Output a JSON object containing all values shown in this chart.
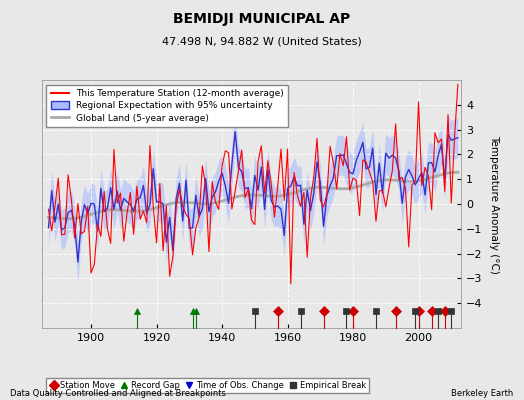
{
  "title": "BEMIDJI MUNICIPAL AP",
  "subtitle": "47.498 N, 94.882 W (United States)",
  "xlabel_note": "Data Quality Controlled and Aligned at Breakpoints",
  "right_note": "Berkeley Earth",
  "ylabel": "Temperature Anomaly (°C)",
  "xlim": [
    1885,
    2013
  ],
  "ylim": [
    -5,
    5
  ],
  "yticks": [
    -4,
    -3,
    -2,
    -1,
    0,
    1,
    2,
    3,
    4
  ],
  "xticks": [
    1900,
    1920,
    1940,
    1960,
    1980,
    2000
  ],
  "bg_color": "#e8e8e8",
  "plot_bg_color": "#e8e8e8",
  "grid_color": "#ffffff",
  "station_color": "#ff0000",
  "regional_line_color": "#3333cc",
  "regional_fill_color": "#aabbff",
  "global_color": "#aaaaaa",
  "legend_station": "This Temperature Station (12-month average)",
  "legend_regional": "Regional Expectation with 95% uncertainty",
  "legend_global": "Global Land (5-year average)",
  "marker_station_move": {
    "color": "#cc0000",
    "marker": "D",
    "label": "Station Move"
  },
  "marker_record_gap": {
    "color": "#007700",
    "marker": "^",
    "label": "Record Gap"
  },
  "marker_time_obs": {
    "color": "#0000cc",
    "marker": "v",
    "label": "Time of Obs. Change"
  },
  "marker_empirical": {
    "color": "#333333",
    "marker": "s",
    "label": "Empirical Break"
  },
  "station_moves": [
    1957,
    1971,
    1980,
    1993,
    2000,
    2004,
    2008
  ],
  "record_gaps": [
    1914,
    1931,
    1932
  ],
  "time_obs_changes": [],
  "empirical_breaks": [
    1950,
    1964,
    1978,
    1987,
    1999,
    2006,
    2010
  ],
  "vline_color": "#888888",
  "figsize": [
    5.24,
    4.0
  ],
  "dpi": 100
}
